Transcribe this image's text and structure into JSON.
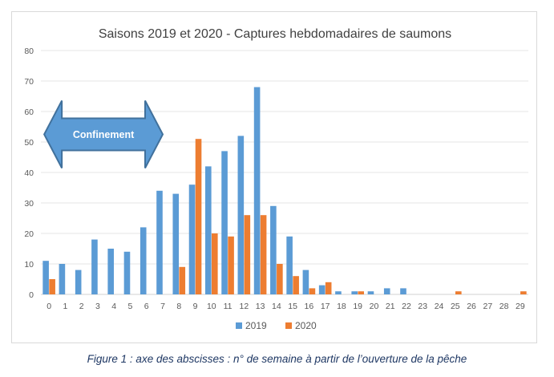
{
  "chart_data": {
    "type": "bar",
    "title": "Saisons 2019 et 2020 - Captures hebdomadaires de saumons",
    "xlabel": "",
    "ylabel": "",
    "ylim": [
      0,
      80
    ],
    "yticks": [
      0,
      10,
      20,
      30,
      40,
      50,
      60,
      70,
      80
    ],
    "grid": true,
    "legend_position": "bottom",
    "categories": [
      "0",
      "1",
      "2",
      "3",
      "4",
      "5",
      "6",
      "7",
      "8",
      "9",
      "10",
      "11",
      "12",
      "13",
      "14",
      "15",
      "16",
      "17",
      "18",
      "19",
      "20",
      "21",
      "22",
      "23",
      "24",
      "25",
      "26",
      "27",
      "28",
      "29"
    ],
    "series": [
      {
        "name": "2019",
        "color": "#5b9bd5",
        "values": [
          11,
          10,
          8,
          18,
          15,
          14,
          22,
          34,
          33,
          36,
          42,
          47,
          52,
          68,
          29,
          19,
          8,
          3,
          1,
          1,
          1,
          2,
          2,
          0,
          0,
          0,
          0,
          0,
          0,
          0
        ]
      },
      {
        "name": "2020",
        "color": "#ed7d31",
        "values": [
          5,
          0,
          0,
          0,
          0,
          0,
          0,
          0,
          9,
          51,
          20,
          19,
          26,
          26,
          10,
          6,
          2,
          4,
          0,
          1,
          0,
          0,
          0,
          0,
          0,
          1,
          0,
          0,
          0,
          1
        ]
      }
    ],
    "annotation": {
      "label": "Confinement",
      "from_week": 0,
      "to_week": 7,
      "fill": "#5b9bd5",
      "stroke": "#41719c"
    }
  },
  "caption": "Figure 1 : axe des abscisses : n° de semaine à partir de l’ouverture de la pêche"
}
